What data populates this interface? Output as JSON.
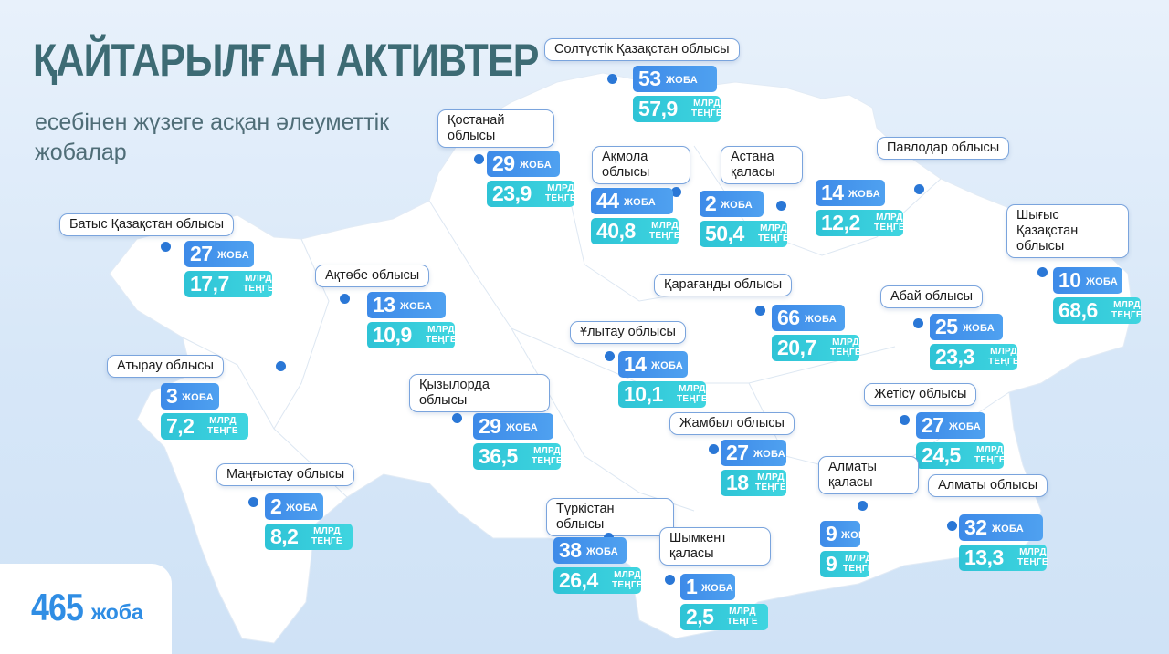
{
  "title": "ҚАЙТАРЫЛҒАН АКТИВТЕР",
  "subtitle": "есебінен жүзеге асқан әлеуметтік жобалар",
  "total": {
    "value": "465",
    "unit": "жоба"
  },
  "units": {
    "projects": "ЖОБА",
    "mln": "МЛРД",
    "tenge": "ТЕҢГЕ"
  },
  "regions": [
    {
      "name": "Солтүстік Қазақстан облысы",
      "projects": "53",
      "amount": "57,9"
    },
    {
      "name": "Қостанай облысы",
      "projects": "29",
      "amount": "23,9"
    },
    {
      "name": "Ақмола облысы",
      "projects": "44",
      "amount": "40,8"
    },
    {
      "name": "Астана қаласы",
      "projects": "2",
      "amount": "50,4"
    },
    {
      "name": "Павлодар облысы",
      "projects": "14",
      "amount": "12,2"
    },
    {
      "name": "Батыс Қазақстан облысы",
      "projects": "27",
      "amount": "17,7"
    },
    {
      "name": "Ақтөбе облысы",
      "projects": "13",
      "amount": "10,9"
    },
    {
      "name": "Шығыс Қазақстан облысы",
      "projects": "10",
      "amount": "68,6"
    },
    {
      "name": "Қарағанды облысы",
      "projects": "66",
      "amount": "20,7"
    },
    {
      "name": "Абай облысы",
      "projects": "25",
      "amount": "23,3"
    },
    {
      "name": "Ұлытау облысы",
      "projects": "14",
      "amount": "10,1"
    },
    {
      "name": "Атырау облысы",
      "projects": "3",
      "amount": "7,2"
    },
    {
      "name": "Қызылорда облысы",
      "projects": "29",
      "amount": "36,5"
    },
    {
      "name": "Жетісу облысы",
      "projects": "27",
      "amount": "24,5"
    },
    {
      "name": "Жамбыл облысы",
      "projects": "27",
      "amount": "18"
    },
    {
      "name": "Маңғыстау облысы",
      "projects": "2",
      "amount": "8,2"
    },
    {
      "name": "Алматы қаласы",
      "projects": "9",
      "amount": "9"
    },
    {
      "name": "Түркістан облысы",
      "projects": "38",
      "amount": "26,4"
    },
    {
      "name": "Шымкент қаласы",
      "projects": "1",
      "amount": "2,5"
    },
    {
      "name": "Алматы облысы",
      "projects": "32",
      "amount": "13,3"
    }
  ]
}
